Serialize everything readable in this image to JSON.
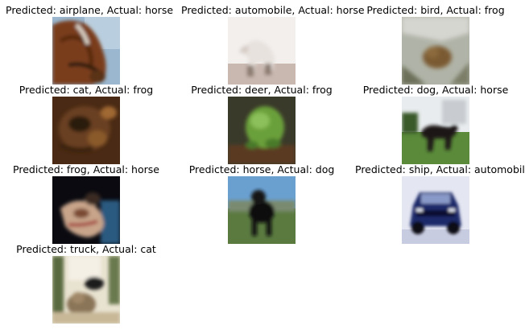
{
  "figure": {
    "samples": [
      {
        "predicted": "airplane",
        "actual": "horse",
        "caption": "Predicted: airplane, Actual: horse"
      },
      {
        "predicted": "automobile",
        "actual": "horse",
        "caption": "Predicted: automobile, Actual: horse"
      },
      {
        "predicted": "bird",
        "actual": "frog",
        "caption": "Predicted: bird, Actual: frog"
      },
      {
        "predicted": "cat",
        "actual": "frog",
        "caption": "Predicted: cat, Actual: frog"
      },
      {
        "predicted": "deer",
        "actual": "frog",
        "caption": "Predicted: deer, Actual: frog"
      },
      {
        "predicted": "dog",
        "actual": "horse",
        "caption": "Predicted: dog, Actual: horse"
      },
      {
        "predicted": "frog",
        "actual": "horse",
        "caption": "Predicted: frog, Actual: horse"
      },
      {
        "predicted": "horse",
        "actual": "dog",
        "caption": "Predicted: horse, Actual: dog"
      },
      {
        "predicted": "ship",
        "actual": "automobile",
        "caption": "Predicted: ship, Actual: automobile"
      },
      {
        "predicted": "truck",
        "actual": "cat",
        "caption": "Predicted: truck, Actual: cat"
      }
    ]
  }
}
